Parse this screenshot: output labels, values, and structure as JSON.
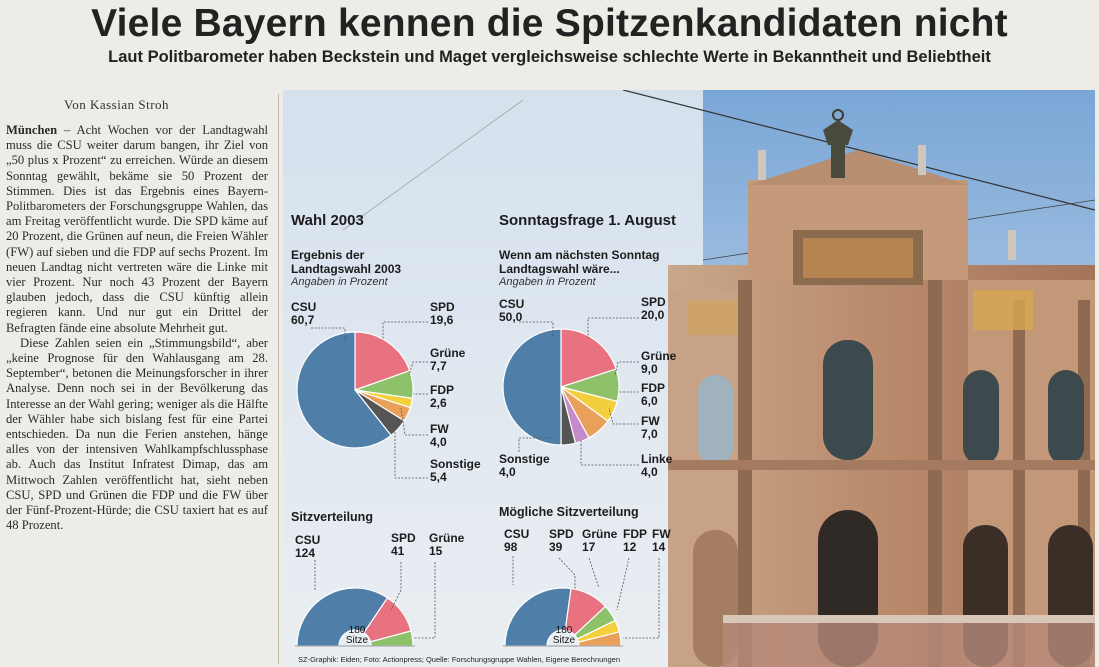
{
  "article": {
    "headline": "Viele Bayern kennen die Spitzenkandidaten nicht",
    "subheadline": "Laut Politbarometer haben Beckstein und Maget vergleichsweise schlechte Werte in Bekanntheit und Beliebtheit",
    "byline": "Von Kassian Stroh",
    "dateline": "München",
    "paragraph1": " – Acht Wochen vor der Landtagwahl muss die CSU weiter darum bangen, ihr Ziel von „50 plus x Prozent“ zu erreichen. Würde an diesem Sonntag gewählt, bekäme sie 50 Prozent der Stimmen. Dies ist das Ergebnis eines Bayern-Politbarometers der Forschungsgruppe Wahlen, das am Freitag veröffentlicht wurde. Die SPD käme auf 20 Prozent, die Grünen auf neun, die Freien Wähler (FW) auf sieben und die FDP auf sechs Prozent. Im neuen Landtag nicht vertreten wäre die Linke mit vier Prozent. Nur noch 43 Prozent der Bayern glauben jedoch, dass die CSU künftig allein regieren kann. Und nur gut ein Drittel der Befragten fände eine absolute Mehrheit gut.",
    "paragraph2": "Diese Zahlen seien ein „Stimmungsbild“, aber „keine Prognose für den Wahlausgang am 28. September“, betonen die Meinungsforscher in ihrer Analyse. Denn noch sei in der Bevölkerung das Interesse an der Wahl gering; weniger als die Hälfte der Wähler habe sich bislang fest für eine Partei entschieden. Da nun die Ferien anstehen, hänge alles von der intensiven Wahlkampfschlussphase ab. Auch das Institut Infratest Dimap, das am Mittwoch Zahlen veröffentlicht hat, sieht neben CSU, SPD und Grünen die FDP und die FW über der Fünf-Prozent-Hürde; die CSU taxiert hat es auf 48 Prozent."
  },
  "colors": {
    "CSU": "#4f7fa8",
    "SPD": "#e8727f",
    "Gruene": "#8ec26a",
    "FDP": "#f2cf3d",
    "FW": "#e9a05a",
    "Linke": "#c58ac9",
    "Sonstige": "#555555"
  },
  "chart_data": [
    {
      "type": "pie",
      "panel_title": "Wahl 2003",
      "title": "Ergebnis der Landtagswahl 2003",
      "units": "Angaben in Prozent",
      "slices": [
        {
          "key": "CSU",
          "label": "CSU",
          "value": 60.7,
          "display": "60,7"
        },
        {
          "key": "SPD",
          "label": "SPD",
          "value": 19.6,
          "display": "19,6"
        },
        {
          "key": "Gruene",
          "label": "Grüne",
          "value": 7.7,
          "display": "7,7"
        },
        {
          "key": "FDP",
          "label": "FDP",
          "value": 2.6,
          "display": "2,6"
        },
        {
          "key": "FW",
          "label": "FW",
          "value": 4.0,
          "display": "4,0"
        },
        {
          "key": "Sonstige",
          "label": "Sonstige",
          "value": 5.4,
          "display": "5,4"
        }
      ]
    },
    {
      "type": "pie",
      "panel_title": "Sonntagsfrage 1. August",
      "title": "Wenn am nächsten Sonntag Landtagswahl wäre...",
      "units": "Angaben in Prozent",
      "slices": [
        {
          "key": "CSU",
          "label": "CSU",
          "value": 50.0,
          "display": "50,0"
        },
        {
          "key": "SPD",
          "label": "SPD",
          "value": 20.0,
          "display": "20,0"
        },
        {
          "key": "Gruene",
          "label": "Grüne",
          "value": 9.0,
          "display": "9,0"
        },
        {
          "key": "FDP",
          "label": "FDP",
          "value": 6.0,
          "display": "6,0"
        },
        {
          "key": "FW",
          "label": "FW",
          "value": 7.0,
          "display": "7,0"
        },
        {
          "key": "Linke",
          "label": "Linke",
          "value": 4.0,
          "display": "4,0"
        },
        {
          "key": "Sonstige",
          "label": "Sonstige",
          "value": 4.0,
          "display": "4,0"
        }
      ]
    },
    {
      "type": "pie",
      "subtype": "semicircle",
      "title": "Sitzverteilung",
      "total_seats": "180",
      "total_label": "Sitze",
      "seats": [
        {
          "key": "CSU",
          "label": "CSU",
          "value": 124
        },
        {
          "key": "SPD",
          "label": "SPD",
          "value": 41
        },
        {
          "key": "Gruene",
          "label": "Grüne",
          "value": 15
        }
      ]
    },
    {
      "type": "pie",
      "subtype": "semicircle",
      "title": "Mögliche Sitzverteilung",
      "total_seats": "180",
      "total_label": "Sitze",
      "seats": [
        {
          "key": "CSU",
          "label": "CSU",
          "value": 98
        },
        {
          "key": "SPD",
          "label": "SPD",
          "value": 39
        },
        {
          "key": "Gruene",
          "label": "Grüne",
          "value": 17
        },
        {
          "key": "FDP",
          "label": "FDP",
          "value": 12
        },
        {
          "key": "FW",
          "label": "FW",
          "value": 14
        }
      ]
    }
  ],
  "credits": "SZ-Graphik: Eiden; Foto: Actionpress; Quelle: Forschungsgruppe Wahlen, Eigene Berechnungen"
}
